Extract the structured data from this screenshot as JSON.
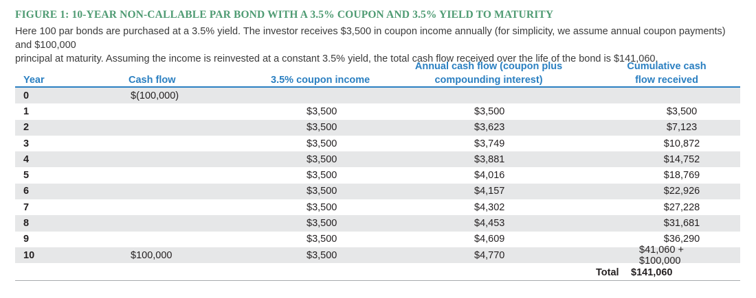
{
  "figure": {
    "title": "FIGURE 1: 10-YEAR NON-CALLABLE PAR BOND WITH A 3.5% COUPON AND 3.5% YIELD TO MATURITY",
    "description_line1": "Here 100 par bonds are purchased at a 3.5% yield. The investor receives $3,500 in coupon income annually (for simplicity, we assume annual coupon payments) and $100,000",
    "description_line2": "principal at maturity. Assuming the income is reinvested at a constant 3.5% yield, the total cash flow received over the life of the bond is $141,060."
  },
  "table": {
    "headers": {
      "year": "Year",
      "cash_flow": "Cash flow",
      "coupon_income": "3.5% coupon income",
      "annual_line1": "Annual cash flow (coupon plus",
      "annual_line2": "compounding interest)",
      "cumulative_line1": "Cumulative cash",
      "cumulative_line2": "flow received"
    },
    "rows": [
      {
        "year": "0",
        "cash_flow": "$(100,000)",
        "coupon": "",
        "annual": "",
        "cumulative": ""
      },
      {
        "year": "1",
        "cash_flow": "",
        "coupon": "$3,500",
        "annual": "$3,500",
        "cumulative": "$3,500"
      },
      {
        "year": "2",
        "cash_flow": "",
        "coupon": "$3,500",
        "annual": "$3,623",
        "cumulative": "$7,123"
      },
      {
        "year": "3",
        "cash_flow": "",
        "coupon": "$3,500",
        "annual": "$3,749",
        "cumulative": "$10,872"
      },
      {
        "year": "4",
        "cash_flow": "",
        "coupon": "$3,500",
        "annual": "$3,881",
        "cumulative": "$14,752"
      },
      {
        "year": "5",
        "cash_flow": "",
        "coupon": "$3,500",
        "annual": "$4,016",
        "cumulative": "$18,769"
      },
      {
        "year": "6",
        "cash_flow": "",
        "coupon": "$3,500",
        "annual": "$4,157",
        "cumulative": "$22,926"
      },
      {
        "year": "7",
        "cash_flow": "",
        "coupon": "$3,500",
        "annual": "$4,302",
        "cumulative": "$27,228"
      },
      {
        "year": "8",
        "cash_flow": "",
        "coupon": "$3,500",
        "annual": "$4,453",
        "cumulative": "$31,681"
      },
      {
        "year": "9",
        "cash_flow": "",
        "coupon": "$3,500",
        "annual": "$4,609",
        "cumulative": "$36,290"
      },
      {
        "year": "10",
        "cash_flow": "$100,000",
        "coupon": "$3,500",
        "annual": "$4,770",
        "cumulative": "$41,060 + $100,000"
      }
    ],
    "total_label": "Total",
    "total_value": "$141,060"
  },
  "colors": {
    "title_green": "#4f9b73",
    "header_blue": "#2a7fc1",
    "row_shade": "#e6e7e8"
  }
}
